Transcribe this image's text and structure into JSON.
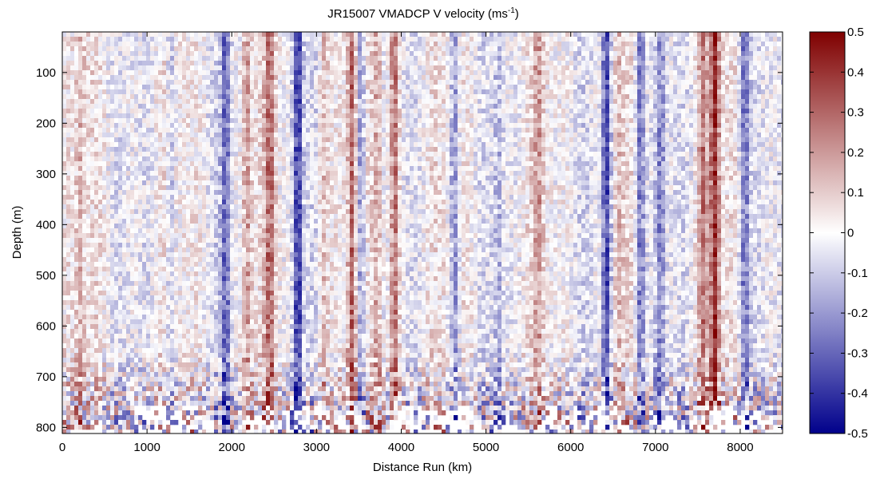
{
  "chart_data": {
    "type": "heatmap",
    "title_main": "JR15007 VMADCP V velocity (ms",
    "title_sup": "-1",
    "title_end": ")",
    "xlabel": "Distance Run (km)",
    "ylabel": "Depth (m)",
    "xlim": [
      0,
      8500
    ],
    "ylim": [
      812,
      20
    ],
    "y_reversed": true,
    "xticks": [
      0,
      1000,
      2000,
      3000,
      4000,
      5000,
      6000,
      7000,
      8000
    ],
    "yticks": [
      100,
      200,
      300,
      400,
      500,
      600,
      700,
      800
    ],
    "colorbar": {
      "range": [
        -0.5,
        0.5
      ],
      "ticks": [
        0.5,
        0.4,
        0.3,
        0.2,
        0.1,
        0,
        -0.1,
        -0.2,
        -0.3,
        -0.4,
        -0.5
      ],
      "tick_labels": [
        "0.5",
        "0.4",
        "0.3",
        "0.2",
        "0.1",
        "0",
        "-0.1",
        "-0.2",
        "-0.3",
        "-0.4",
        "-0.5"
      ],
      "colormap": [
        "#00008b",
        "#ffffff",
        "#7f0000"
      ]
    },
    "features": [
      {
        "distance_km": 210,
        "velocity": 0.12
      },
      {
        "distance_km": 1280,
        "velocity": -0.15
      },
      {
        "distance_km": 1930,
        "velocity": -0.28
      },
      {
        "distance_km": 2180,
        "velocity": 0.2
      },
      {
        "distance_km": 2450,
        "velocity": 0.25
      },
      {
        "distance_km": 2780,
        "velocity": -0.4
      },
      {
        "distance_km": 3080,
        "velocity": 0.15
      },
      {
        "distance_km": 3420,
        "velocity": 0.28
      },
      {
        "distance_km": 3520,
        "velocity": -0.25
      },
      {
        "distance_km": 3720,
        "velocity": 0.18
      },
      {
        "distance_km": 3920,
        "velocity": 0.3
      },
      {
        "distance_km": 4630,
        "velocity": -0.22
      },
      {
        "distance_km": 5150,
        "velocity": -0.12
      },
      {
        "distance_km": 5620,
        "velocity": 0.14
      },
      {
        "distance_km": 6420,
        "velocity": -0.38
      },
      {
        "distance_km": 6570,
        "velocity": 0.12
      },
      {
        "distance_km": 6820,
        "velocity": -0.3
      },
      {
        "distance_km": 7060,
        "velocity": -0.22
      },
      {
        "distance_km": 7560,
        "velocity": 0.22
      },
      {
        "distance_km": 7700,
        "velocity": 0.4
      },
      {
        "distance_km": 8050,
        "velocity": -0.25
      }
    ],
    "max_depth_m": 812,
    "grid": false
  },
  "colors": {
    "negative": "#00008b",
    "zero": "#ffffff",
    "positive": "#7f0000",
    "axis": "#000000"
  }
}
